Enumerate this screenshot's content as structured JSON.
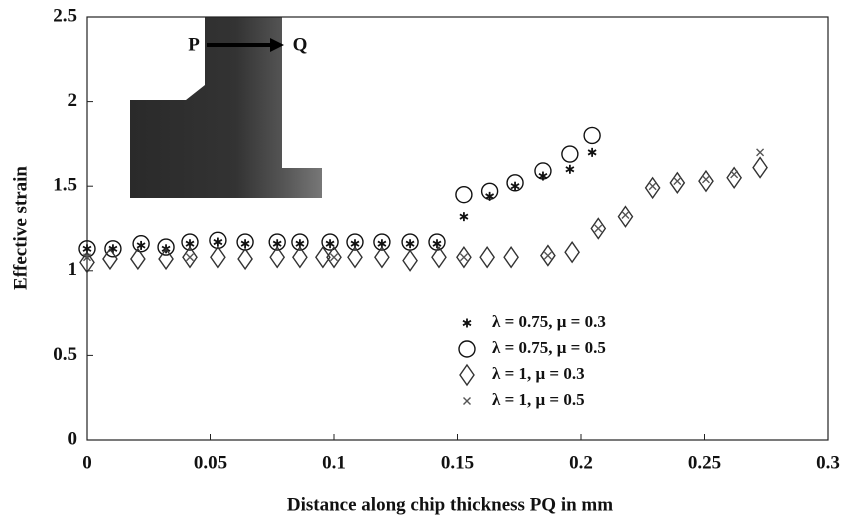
{
  "chart_data": {
    "type": "scatter",
    "xlabel": "Distance along chip thickness PQ in mm",
    "ylabel": "Effective strain",
    "annotations": [
      "P",
      "Q"
    ],
    "xlim": [
      0,
      0.3
    ],
    "ylim": [
      0,
      2.5
    ],
    "xticks": [
      0,
      0.05,
      0.1,
      0.15,
      0.2,
      0.25,
      0.3
    ],
    "yticks": [
      0,
      0.5,
      1,
      1.5,
      2,
      2.5
    ],
    "legend": "lower right",
    "series": [
      {
        "name": "λ = 0.75, μ = 0.3",
        "marker": "asterisk",
        "color": "#111111",
        "x": [
          0,
          0.0105,
          0.0219,
          0.032,
          0.0417,
          0.053,
          0.064,
          0.077,
          0.0862,
          0.0984,
          0.1085,
          0.1194,
          0.1308,
          0.1417,
          0.1526,
          0.163,
          0.1733,
          0.1846,
          0.1955,
          0.2045
        ],
        "values": [
          1.13,
          1.13,
          1.15,
          1.13,
          1.16,
          1.17,
          1.16,
          1.16,
          1.16,
          1.16,
          1.16,
          1.16,
          1.16,
          1.16,
          1.32,
          1.44,
          1.5,
          1.56,
          1.6,
          1.7
        ]
      },
      {
        "name": "λ = 0.75, μ = 0.5",
        "marker": "circle",
        "color": "#111111",
        "x": [
          0,
          0.0105,
          0.0219,
          0.032,
          0.0417,
          0.053,
          0.064,
          0.077,
          0.0862,
          0.0984,
          0.1085,
          0.1194,
          0.1308,
          0.1417,
          0.1526,
          0.163,
          0.1733,
          0.1846,
          0.1955,
          0.2045
        ],
        "values": [
          1.13,
          1.13,
          1.16,
          1.14,
          1.17,
          1.18,
          1.17,
          1.17,
          1.17,
          1.17,
          1.17,
          1.17,
          1.17,
          1.17,
          1.45,
          1.47,
          1.52,
          1.59,
          1.69,
          1.8
        ]
      },
      {
        "name": "λ = 1, μ = 0.3",
        "marker": "diamond",
        "color": "#333333",
        "x": [
          0,
          0.0093,
          0.0206,
          0.032,
          0.0417,
          0.053,
          0.064,
          0.077,
          0.0862,
          0.0955,
          0.1,
          0.1085,
          0.1194,
          0.1308,
          0.1425,
          0.1526,
          0.162,
          0.1717,
          0.1866,
          0.1964,
          0.207,
          0.218,
          0.229,
          0.239,
          0.2506,
          0.262,
          0.2725
        ],
        "values": [
          1.05,
          1.07,
          1.07,
          1.07,
          1.08,
          1.08,
          1.07,
          1.08,
          1.08,
          1.08,
          1.08,
          1.08,
          1.08,
          1.06,
          1.08,
          1.08,
          1.08,
          1.08,
          1.09,
          1.11,
          1.25,
          1.32,
          1.49,
          1.52,
          1.53,
          1.55,
          1.61
        ]
      },
      {
        "name": "λ = 1, μ = 0.5",
        "marker": "cross",
        "color": "#555555",
        "x": [
          0,
          0.0417,
          0.1,
          0.1526,
          0.1866,
          0.207,
          0.218,
          0.229,
          0.239,
          0.2506,
          0.262,
          0.2725
        ],
        "values": [
          1.08,
          1.08,
          1.08,
          1.08,
          1.09,
          1.25,
          1.33,
          1.5,
          1.53,
          1.54,
          1.57,
          1.7
        ]
      }
    ]
  }
}
